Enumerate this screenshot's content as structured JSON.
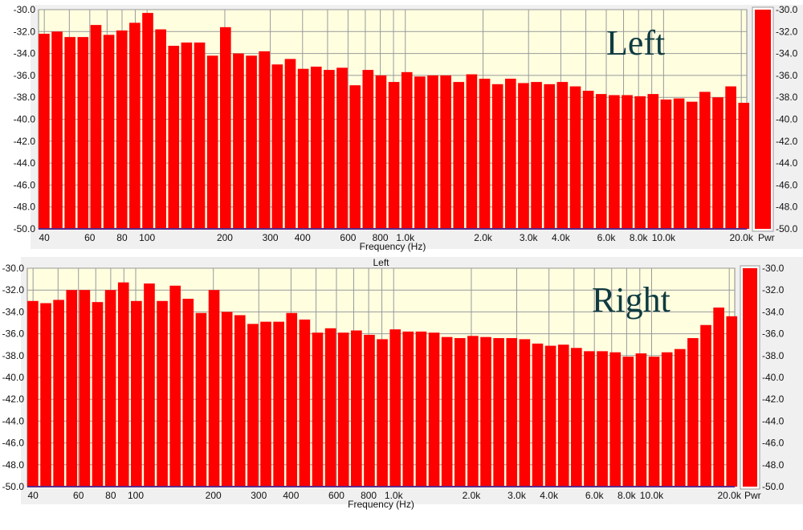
{
  "chart_data": [
    {
      "type": "bar",
      "annotation": "Left",
      "xlabel": "Frequency (Hz)",
      "colorbar_label": "Pwr",
      "x_scale": "log",
      "xlim": [
        38,
        21000
      ],
      "ylim": [
        -50,
        -30
      ],
      "grid": true,
      "bar_color": "#ff0000",
      "plot_background": "#ffffe0",
      "x_tick_labels": [
        "40",
        "60",
        "80",
        "100",
        "200",
        "300",
        "400",
        "600",
        "800",
        "1.0k",
        "2.0k",
        "3.0k",
        "4.0k",
        "6.0k",
        "8.0k",
        "10.0k",
        "20.0k"
      ],
      "y_tick_labels": [
        "-30.0",
        "-32.0",
        "-34.0",
        "-36.0",
        "-38.0",
        "-40.0",
        "-42.0",
        "-44.0",
        "-46.0",
        "-48.0",
        "-50.0"
      ],
      "values": [
        -32.2,
        -32.0,
        -32.5,
        -32.5,
        -31.4,
        -32.3,
        -31.9,
        -31.2,
        -30.3,
        -31.8,
        -33.3,
        -33.0,
        -33.0,
        -34.2,
        -31.6,
        -34.0,
        -34.2,
        -33.8,
        -35.0,
        -34.5,
        -35.4,
        -35.2,
        -35.5,
        -35.3,
        -36.9,
        -35.5,
        -36.0,
        -36.6,
        -35.7,
        -36.1,
        -36.0,
        -36.0,
        -36.6,
        -35.9,
        -36.3,
        -36.8,
        -36.3,
        -36.7,
        -36.6,
        -36.8,
        -36.6,
        -37.0,
        -37.4,
        -37.7,
        -37.8,
        -37.8,
        -37.9,
        -37.7,
        -38.2,
        -38.1,
        -38.4,
        -37.5,
        -38.0,
        -37.0,
        -38.5
      ]
    },
    {
      "type": "bar",
      "title": "Left",
      "annotation": "Right",
      "xlabel": "Frequency (Hz)",
      "colorbar_label": "Pwr",
      "x_scale": "log",
      "xlim": [
        38,
        21000
      ],
      "ylim": [
        -50,
        -30
      ],
      "grid": true,
      "bar_color": "#ff0000",
      "plot_background": "#ffffe0",
      "x_tick_labels": [
        "40",
        "60",
        "80",
        "100",
        "200",
        "300",
        "400",
        "600",
        "800",
        "1.0k",
        "2.0k",
        "3.0k",
        "4.0k",
        "6.0k",
        "8.0k",
        "10.0k",
        "20.0k"
      ],
      "y_tick_labels": [
        "-30.0",
        "-32.0",
        "-34.0",
        "-36.0",
        "-38.0",
        "-40.0",
        "-42.0",
        "-44.0",
        "-46.0",
        "-48.0",
        "-50.0"
      ],
      "values": [
        -33.0,
        -33.2,
        -32.9,
        -32.0,
        -32.0,
        -33.1,
        -32.0,
        -31.3,
        -33.0,
        -31.4,
        -33.0,
        -31.6,
        -32.8,
        -34.1,
        -32.0,
        -34.0,
        -34.3,
        -35.1,
        -34.9,
        -34.9,
        -34.1,
        -34.7,
        -35.9,
        -35.5,
        -35.9,
        -35.7,
        -36.1,
        -36.5,
        -35.6,
        -35.8,
        -35.8,
        -35.9,
        -36.3,
        -36.4,
        -36.2,
        -36.3,
        -36.4,
        -36.4,
        -36.5,
        -36.9,
        -37.1,
        -37.0,
        -37.3,
        -37.6,
        -37.6,
        -37.7,
        -38.1,
        -37.8,
        -38.1,
        -37.7,
        -37.4,
        -36.4,
        -35.2,
        -33.6,
        -34.4
      ]
    }
  ]
}
